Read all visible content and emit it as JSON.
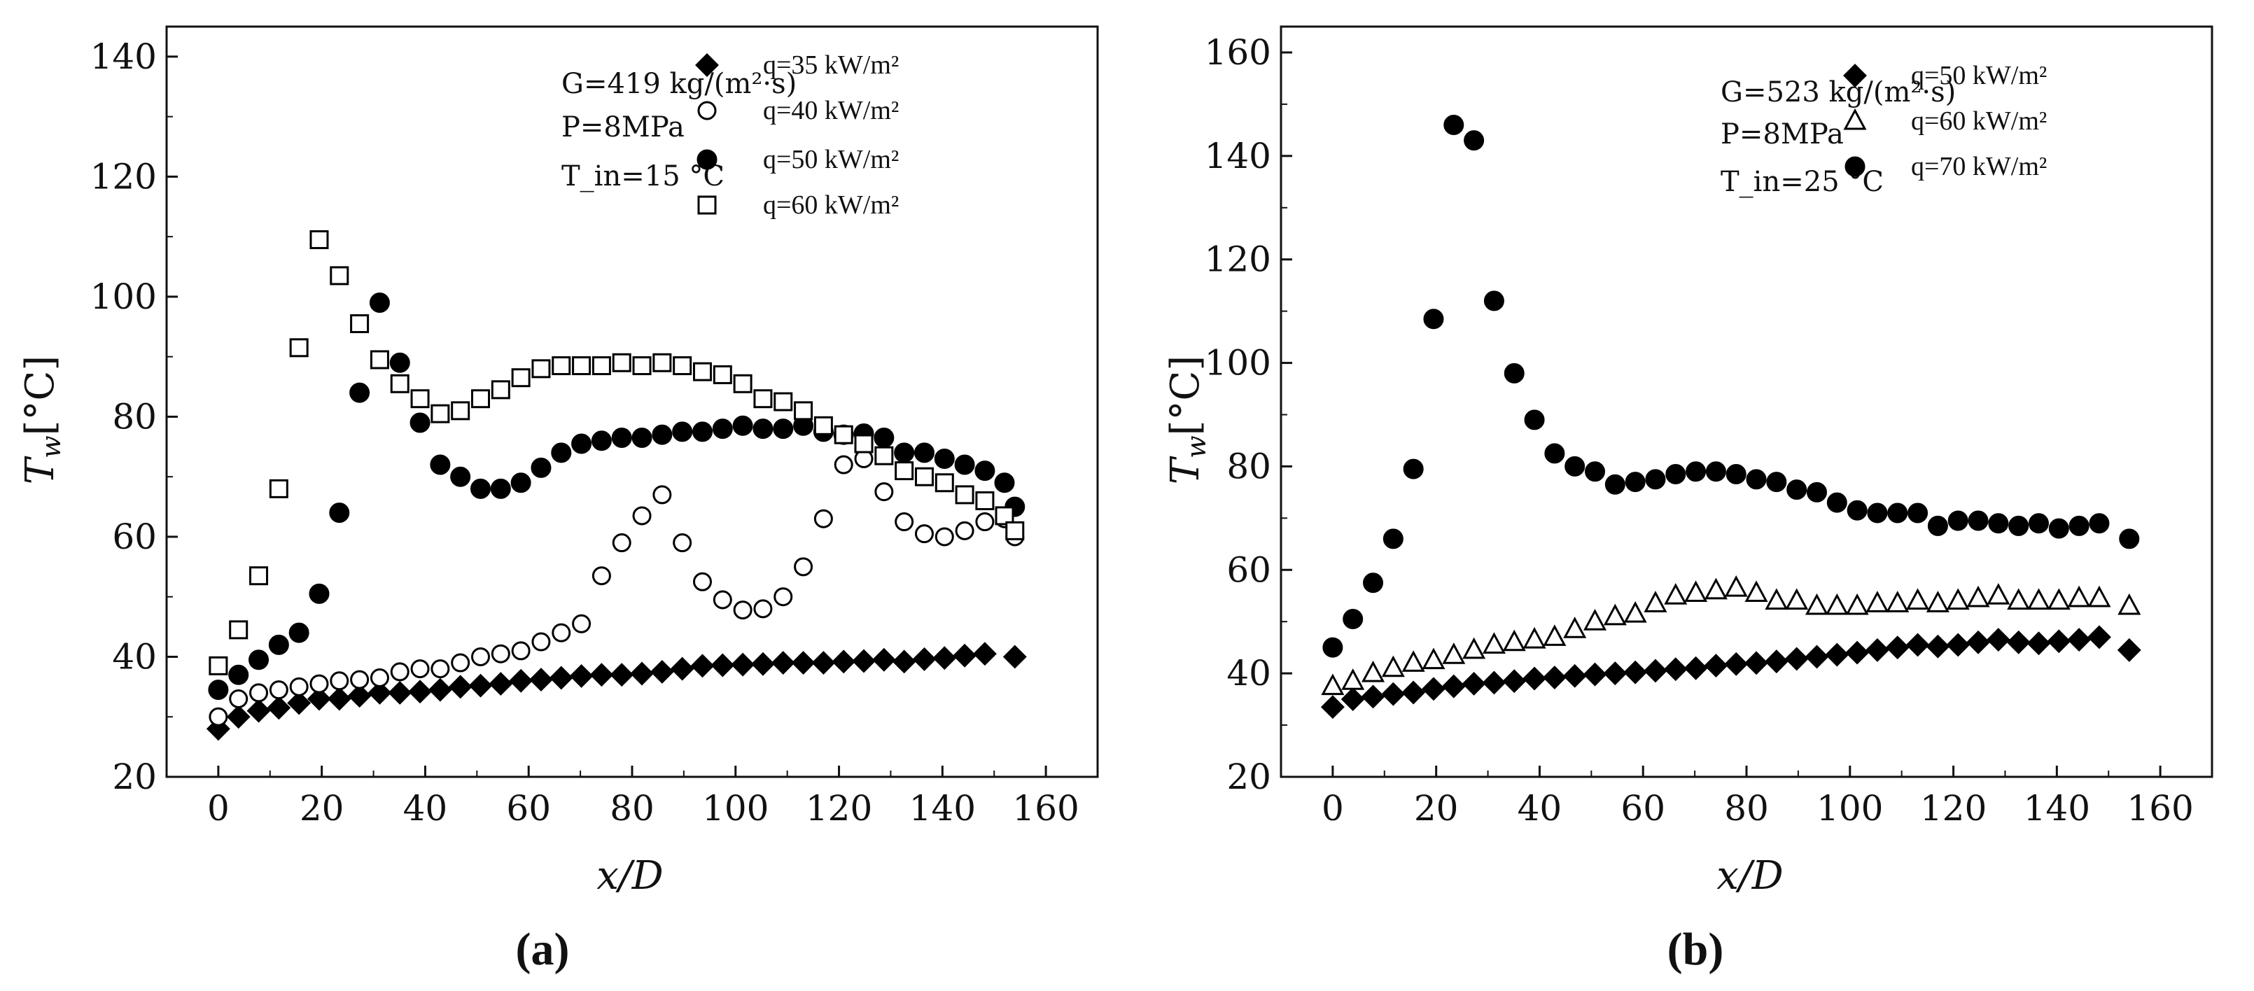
{
  "chart_data": [
    {
      "type": "scatter",
      "panel_label": "(a)",
      "xlabel": "x/D",
      "ylabel": "T_w [°C]",
      "ylabel_main": "T",
      "ylabel_sub": "w",
      "ylabel_unit": "[°C]",
      "xlim": [
        -10,
        170
      ],
      "ylim": [
        20,
        145
      ],
      "xticks": [
        0,
        20,
        40,
        60,
        80,
        100,
        120,
        140,
        160
      ],
      "yticks": [
        20,
        40,
        60,
        80,
        100,
        120,
        140
      ],
      "conditions": [
        "G=419 kg/(m²·s)",
        "P=8MPa",
        "T_in=15 °C"
      ],
      "series": [
        {
          "name": "q=35 kW/m²",
          "marker": "diamond-filled",
          "x": [
            0,
            3.9,
            7.8,
            11.7,
            15.6,
            19.5,
            23.4,
            27.3,
            31.2,
            35.1,
            39,
            42.9,
            46.8,
            50.7,
            54.6,
            58.5,
            62.4,
            66.3,
            70.2,
            74.1,
            78,
            81.9,
            85.8,
            89.7,
            93.6,
            97.5,
            101.4,
            105.3,
            109.2,
            113.1,
            117,
            120.9,
            124.8,
            128.7,
            132.6,
            136.5,
            140.4,
            144.3,
            148.2,
            154
          ],
          "values": [
            28,
            30,
            31,
            31.5,
            32.3,
            33,
            33,
            33.5,
            34,
            34,
            34.2,
            34.5,
            35,
            35.2,
            35.5,
            36,
            36.2,
            36.5,
            36.8,
            37,
            37,
            37.2,
            37.5,
            38,
            38.5,
            38.6,
            38.7,
            38.8,
            39,
            39,
            39,
            39.2,
            39.3,
            39.5,
            39.2,
            39.6,
            39.8,
            40.2,
            40.5,
            40
          ]
        },
        {
          "name": "q=40 kW/m²",
          "marker": "circle-open",
          "x": [
            0,
            3.9,
            7.8,
            11.7,
            15.6,
            19.5,
            23.4,
            27.3,
            31.2,
            35.1,
            39,
            42.9,
            46.8,
            50.7,
            54.6,
            58.5,
            62.4,
            66.3,
            70.2,
            74.1,
            78,
            81.9,
            85.8,
            89.7,
            93.6,
            97.5,
            101.4,
            105.3,
            109.2,
            113.1,
            117,
            120.9,
            124.8,
            128.7,
            132.6,
            136.5,
            140.4,
            144.3,
            148.2,
            152,
            154
          ],
          "values": [
            30,
            33,
            34,
            34.5,
            35,
            35.5,
            36,
            36.2,
            36.5,
            37.5,
            38,
            38,
            39,
            40,
            40.5,
            41,
            42.5,
            44,
            45.5,
            53.5,
            59,
            63.5,
            67,
            59,
            52.5,
            49.5,
            47.8,
            48,
            50,
            55,
            63,
            72,
            73,
            67.5,
            62.5,
            60.5,
            60,
            61,
            62.5,
            63,
            60
          ]
        },
        {
          "name": "q=50 kW/m²",
          "marker": "circle-filled",
          "x": [
            0,
            3.9,
            7.8,
            11.7,
            15.6,
            19.5,
            23.4,
            27.3,
            31.2,
            35.1,
            39,
            42.9,
            46.8,
            50.7,
            54.6,
            58.5,
            62.4,
            66.3,
            70.2,
            74.1,
            78,
            81.9,
            85.8,
            89.7,
            93.6,
            97.5,
            101.4,
            105.3,
            109.2,
            113.1,
            117,
            120.9,
            124.8,
            128.7,
            132.6,
            136.5,
            140.4,
            144.3,
            148.2,
            152,
            154
          ],
          "values": [
            34.5,
            37,
            39.5,
            42,
            44,
            50.5,
            64,
            84,
            99,
            89,
            79,
            72,
            70,
            68,
            68,
            69,
            71.5,
            74,
            75.5,
            76,
            76.5,
            76.5,
            77,
            77.5,
            77.5,
            78,
            78.5,
            78,
            78,
            78.5,
            77.5,
            77,
            77.2,
            76.5,
            74,
            74,
            73,
            72,
            71,
            69,
            65
          ]
        },
        {
          "name": "q=60 kW/m²",
          "marker": "square-open",
          "x": [
            0,
            3.9,
            7.8,
            11.7,
            15.6,
            19.5,
            23.4,
            27.3,
            31.2,
            35.1,
            39,
            42.9,
            46.8,
            50.7,
            54.6,
            58.5,
            62.4,
            66.3,
            70.2,
            74.1,
            78,
            81.9,
            85.8,
            89.7,
            93.6,
            97.5,
            101.4,
            105.3,
            109.2,
            113.1,
            117,
            120.9,
            124.8,
            128.7,
            132.6,
            136.5,
            140.4,
            144.3,
            148.2,
            152,
            154
          ],
          "values": [
            38.5,
            44.5,
            53.5,
            68,
            91.5,
            109.5,
            103.5,
            95.5,
            89.5,
            85.5,
            83,
            80.5,
            81,
            83,
            84.5,
            86.5,
            88,
            88.5,
            88.5,
            88.5,
            89,
            88.5,
            89,
            88.5,
            87.5,
            87,
            85.5,
            83,
            82.5,
            81,
            78.5,
            77,
            75.5,
            73.5,
            71,
            70,
            69,
            67,
            66,
            63.5,
            61
          ]
        }
      ]
    },
    {
      "type": "scatter",
      "panel_label": "(b)",
      "xlabel": "x/D",
      "ylabel": "T_w [°C]",
      "ylabel_main": "T",
      "ylabel_sub": "w",
      "ylabel_unit": "[°C]",
      "xlim": [
        -10,
        170
      ],
      "ylim": [
        20,
        165
      ],
      "xticks": [
        0,
        20,
        40,
        60,
        80,
        100,
        120,
        140,
        160
      ],
      "yticks": [
        20,
        40,
        60,
        80,
        100,
        120,
        140,
        160
      ],
      "conditions": [
        "G=523 kg/(m²·s)",
        "P=8MPa",
        "T_in=25 °C"
      ],
      "series": [
        {
          "name": "q=50 kW/m²",
          "marker": "diamond-filled",
          "x": [
            0,
            3.9,
            7.8,
            11.7,
            15.6,
            19.5,
            23.4,
            27.3,
            31.2,
            35.1,
            39,
            42.9,
            46.8,
            50.7,
            54.6,
            58.5,
            62.4,
            66.3,
            70.2,
            74.1,
            78,
            81.9,
            85.8,
            89.7,
            93.6,
            97.5,
            101.4,
            105.3,
            109.2,
            113.1,
            117,
            120.9,
            124.8,
            128.7,
            132.6,
            136.5,
            140.4,
            144.3,
            148.2,
            154
          ],
          "values": [
            33.5,
            35,
            35.5,
            36,
            36.3,
            37,
            37.5,
            38,
            38.2,
            38.5,
            39,
            39.2,
            39.5,
            39.8,
            40,
            40.2,
            40.5,
            40.8,
            41,
            41.5,
            41.8,
            42,
            42.3,
            42.8,
            43.2,
            43.6,
            44,
            44.5,
            45,
            45.5,
            45.2,
            45.5,
            46,
            46.5,
            46,
            45.8,
            46.2,
            46.5,
            47,
            44.5
          ]
        },
        {
          "name": "q=60 kW/m²",
          "marker": "triangle-open",
          "x": [
            0,
            3.9,
            7.8,
            11.7,
            15.6,
            19.5,
            23.4,
            27.3,
            31.2,
            35.1,
            39,
            42.9,
            46.8,
            50.7,
            54.6,
            58.5,
            62.4,
            66.3,
            70.2,
            74.1,
            78,
            81.9,
            85.8,
            89.7,
            93.6,
            97.5,
            101.4,
            105.3,
            109.2,
            113.1,
            117,
            120.9,
            124.8,
            128.7,
            132.6,
            136.5,
            140.4,
            144.3,
            148.2,
            154
          ],
          "values": [
            37.5,
            38.5,
            40,
            41,
            42,
            42.5,
            43.5,
            44.5,
            45.5,
            46,
            46.5,
            47,
            48.5,
            50,
            51,
            51.5,
            53.5,
            55,
            55.5,
            56,
            56.5,
            55.5,
            54,
            54,
            53,
            53,
            53,
            53.5,
            53.5,
            54,
            53.5,
            54,
            54.5,
            55,
            54,
            54,
            54,
            54.5,
            54.5,
            53
          ]
        },
        {
          "name": "q=70 kW/m²",
          "marker": "circle-filled",
          "x": [
            0,
            3.9,
            7.8,
            11.7,
            15.6,
            19.5,
            23.4,
            27.3,
            31.2,
            35.1,
            39,
            42.9,
            46.8,
            50.7,
            54.6,
            58.5,
            62.4,
            66.3,
            70.2,
            74.1,
            78,
            81.9,
            85.8,
            89.7,
            93.6,
            97.5,
            101.4,
            105.3,
            109.2,
            113.1,
            117,
            120.9,
            124.8,
            128.7,
            132.6,
            136.5,
            140.4,
            144.3,
            148.2,
            154
          ],
          "values": [
            45,
            50.5,
            57.5,
            66,
            79.5,
            108.5,
            146,
            143,
            112,
            98,
            89,
            82.5,
            80,
            79,
            76.5,
            77,
            77.5,
            78.5,
            79,
            79,
            78.5,
            77.5,
            77,
            75.5,
            75,
            73,
            71.5,
            71,
            71,
            71,
            68.5,
            69.5,
            69.5,
            69,
            68.5,
            69,
            68,
            68.5,
            69,
            66
          ]
        }
      ]
    }
  ]
}
